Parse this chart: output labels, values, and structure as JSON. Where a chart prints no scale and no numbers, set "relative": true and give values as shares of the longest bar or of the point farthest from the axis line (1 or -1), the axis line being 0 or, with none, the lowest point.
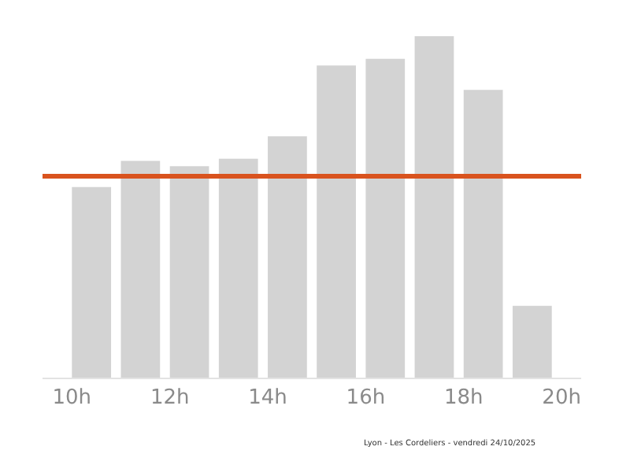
{
  "chart_data": {
    "type": "bar",
    "relative": true,
    "x": [
      10.4,
      11.4,
      12.4,
      13.4,
      14.4,
      15.4,
      16.4,
      17.4,
      18.4,
      19.4
    ],
    "values": [
      0.558,
      0.635,
      0.619,
      0.641,
      0.707,
      0.914,
      0.934,
      1,
      0.843,
      0.21
    ],
    "color": "#d3d3d3",
    "xlim": [
      9.4,
      20.4
    ],
    "xticks": [
      {
        "value": 10,
        "label": "10h"
      },
      {
        "value": 12,
        "label": "12h"
      },
      {
        "value": 14,
        "label": "14h"
      },
      {
        "value": 16,
        "label": "16h"
      },
      {
        "value": 18,
        "label": "18h"
      },
      {
        "value": 20,
        "label": "20h"
      }
    ],
    "ref_lines": [
      {
        "axis": "y",
        "value": 0.59,
        "color": "#d9531e"
      }
    ],
    "annotations": [
      "Lyon - Les Cordeliers - vendredi 24/10/2025"
    ]
  }
}
